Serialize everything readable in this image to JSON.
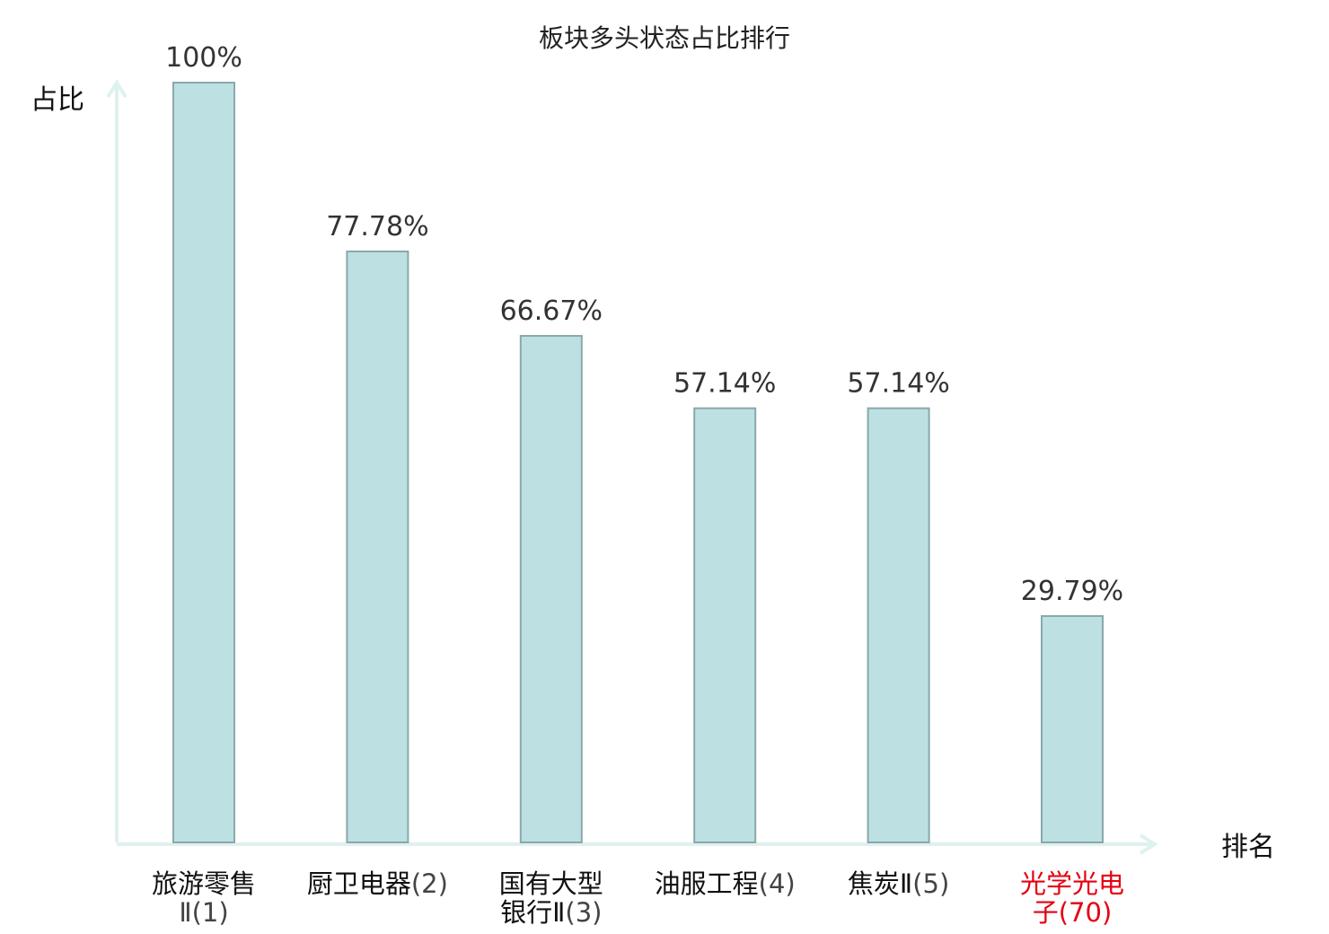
{
  "chart_data": {
    "type": "bar",
    "title": "板块多头状态占比排行",
    "ylabel": "占比",
    "xlabel": "排名",
    "ylim": [
      0,
      100
    ],
    "grid": false,
    "colors": {
      "bar_fill": "#bde0e2",
      "bar_stroke": "#8aa8aa",
      "axis": "#dff1ef",
      "highlight": "#e60012"
    },
    "categories": [
      {
        "lines": [
          {
            "name": "旅游零售",
            "rank": ""
          },
          {
            "name": "",
            "rank": "Ⅱ(1)"
          }
        ],
        "highlight": false
      },
      {
        "lines": [
          {
            "name": "厨卫电器",
            "rank": "(2)"
          }
        ],
        "highlight": false
      },
      {
        "lines": [
          {
            "name": "国有大型",
            "rank": ""
          },
          {
            "name": "银行Ⅱ",
            "rank": "(3)"
          }
        ],
        "highlight": false
      },
      {
        "lines": [
          {
            "name": "油服工程",
            "rank": "(4)"
          }
        ],
        "highlight": false
      },
      {
        "lines": [
          {
            "name": "焦炭Ⅱ",
            "rank": "(5)"
          }
        ],
        "highlight": false
      },
      {
        "lines": [
          {
            "name": "光学光电",
            "rank": ""
          },
          {
            "name": "子",
            "rank": "(70)"
          }
        ],
        "highlight": true
      }
    ],
    "values": [
      100,
      77.78,
      66.67,
      57.14,
      57.14,
      29.79
    ],
    "value_labels": [
      "100%",
      "77.78%",
      "66.67%",
      "57.14%",
      "57.14%",
      "29.79%"
    ]
  }
}
